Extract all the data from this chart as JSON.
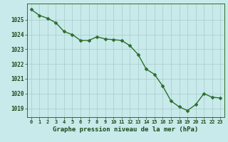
{
  "x": [
    0,
    1,
    2,
    3,
    4,
    5,
    6,
    7,
    8,
    9,
    10,
    11,
    12,
    13,
    14,
    15,
    16,
    17,
    18,
    19,
    20,
    21,
    22,
    23
  ],
  "y": [
    1025.7,
    1025.3,
    1025.1,
    1024.8,
    1024.2,
    1024.0,
    1023.6,
    1023.6,
    1023.85,
    1023.7,
    1023.65,
    1023.6,
    1023.25,
    1022.65,
    1021.65,
    1021.3,
    1020.5,
    1019.5,
    1019.1,
    1018.85,
    1019.25,
    1020.0,
    1019.75,
    1019.7
  ],
  "line_color": "#2d6e2d",
  "marker_color": "#2d6e2d",
  "bg_color": "#c8eaea",
  "grid_color": "#aacaca",
  "xlabel": "Graphe pression niveau de la mer (hPa)",
  "xlabel_color": "#1a4a1a",
  "tick_color": "#1a4a1a",
  "ylim": [
    1018.4,
    1026.1
  ],
  "yticks": [
    1019,
    1020,
    1021,
    1022,
    1023,
    1024,
    1025
  ],
  "xticks": [
    0,
    1,
    2,
    3,
    4,
    5,
    6,
    7,
    8,
    9,
    10,
    11,
    12,
    13,
    14,
    15,
    16,
    17,
    18,
    19,
    20,
    21,
    22,
    23
  ],
  "marker_size": 2.5,
  "line_width": 1.0,
  "spine_color": "#2d6e2d"
}
